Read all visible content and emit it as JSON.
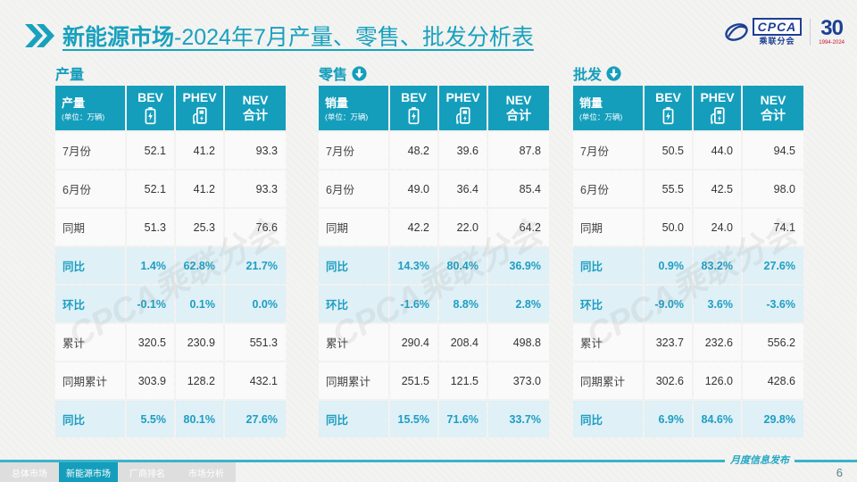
{
  "header": {
    "title_bold": "新能源市场",
    "title_rest": "-2024年7月产量、零售、批发分析表",
    "logo_cpca": "CPCA",
    "logo_sub": "乘联分会",
    "logo_30": "30",
    "logo_years": "1994-2024"
  },
  "watermark": "CPCA乘联分会",
  "table_columns": {
    "bev": "BEV",
    "phev": "PHEV",
    "nev_line1": "NEV",
    "nev_line2": "合计"
  },
  "tables": [
    {
      "section_label": "产量",
      "has_arrow": false,
      "corner_label": "产量",
      "corner_unit": "(单位：万辆)",
      "rows": [
        {
          "label": "7月份",
          "values": [
            "52.1",
            "41.2",
            "93.3"
          ],
          "highlight": false
        },
        {
          "label": "6月份",
          "values": [
            "52.1",
            "41.2",
            "93.3"
          ],
          "highlight": false
        },
        {
          "label": "同期",
          "values": [
            "51.3",
            "25.3",
            "76.6"
          ],
          "highlight": false
        },
        {
          "label": "同比",
          "values": [
            "1.4%",
            "62.8%",
            "21.7%"
          ],
          "highlight": true
        },
        {
          "label": "环比",
          "values": [
            "-0.1%",
            "0.1%",
            "0.0%"
          ],
          "highlight": true
        },
        {
          "label": "累计",
          "values": [
            "320.5",
            "230.9",
            "551.3"
          ],
          "highlight": false
        },
        {
          "label": "同期累计",
          "values": [
            "303.9",
            "128.2",
            "432.1"
          ],
          "highlight": false
        },
        {
          "label": "同比",
          "values": [
            "5.5%",
            "80.1%",
            "27.6%"
          ],
          "highlight": true
        }
      ]
    },
    {
      "section_label": "零售",
      "has_arrow": true,
      "corner_label": "销量",
      "corner_unit": "(单位：万辆)",
      "rows": [
        {
          "label": "7月份",
          "values": [
            "48.2",
            "39.6",
            "87.8"
          ],
          "highlight": false
        },
        {
          "label": "6月份",
          "values": [
            "49.0",
            "36.4",
            "85.4"
          ],
          "highlight": false
        },
        {
          "label": "同期",
          "values": [
            "42.2",
            "22.0",
            "64.2"
          ],
          "highlight": false
        },
        {
          "label": "同比",
          "values": [
            "14.3%",
            "80.4%",
            "36.9%"
          ],
          "highlight": true
        },
        {
          "label": "环比",
          "values": [
            "-1.6%",
            "8.8%",
            "2.8%"
          ],
          "highlight": true
        },
        {
          "label": "累计",
          "values": [
            "290.4",
            "208.4",
            "498.8"
          ],
          "highlight": false
        },
        {
          "label": "同期累计",
          "values": [
            "251.5",
            "121.5",
            "373.0"
          ],
          "highlight": false
        },
        {
          "label": "同比",
          "values": [
            "15.5%",
            "71.6%",
            "33.7%"
          ],
          "highlight": true
        }
      ]
    },
    {
      "section_label": "批发",
      "has_arrow": true,
      "corner_label": "销量",
      "corner_unit": "(单位：万辆)",
      "rows": [
        {
          "label": "7月份",
          "values": [
            "50.5",
            "44.0",
            "94.5"
          ],
          "highlight": false
        },
        {
          "label": "6月份",
          "values": [
            "55.5",
            "42.5",
            "98.0"
          ],
          "highlight": false
        },
        {
          "label": "同期",
          "values": [
            "50.0",
            "24.0",
            "74.1"
          ],
          "highlight": false
        },
        {
          "label": "同比",
          "values": [
            "0.9%",
            "83.2%",
            "27.6%"
          ],
          "highlight": true
        },
        {
          "label": "环比",
          "values": [
            "-9.0%",
            "3.6%",
            "-3.6%"
          ],
          "highlight": true
        },
        {
          "label": "累计",
          "values": [
            "323.7",
            "232.6",
            "556.2"
          ],
          "highlight": false
        },
        {
          "label": "同期累计",
          "values": [
            "302.6",
            "126.0",
            "428.6"
          ],
          "highlight": false
        },
        {
          "label": "同比",
          "values": [
            "6.9%",
            "84.6%",
            "29.8%"
          ],
          "highlight": true
        }
      ]
    }
  ],
  "footer": {
    "tabs": [
      {
        "label": "总体市场",
        "active": false
      },
      {
        "label": "新能源市场",
        "active": true
      },
      {
        "label": "厂商排名",
        "active": false
      },
      {
        "label": "市场分析",
        "active": false
      }
    ],
    "publication": "月度信息发布",
    "page_number": "6"
  },
  "colors": {
    "accent_teal": "#149EBC",
    "title_teal": "#18A1BF",
    "highlight_row_bg": "#DFF0F6",
    "highlight_text": "#1D9EC2",
    "logo_blue": "#1D3F94",
    "logo_red": "#C8102E"
  }
}
